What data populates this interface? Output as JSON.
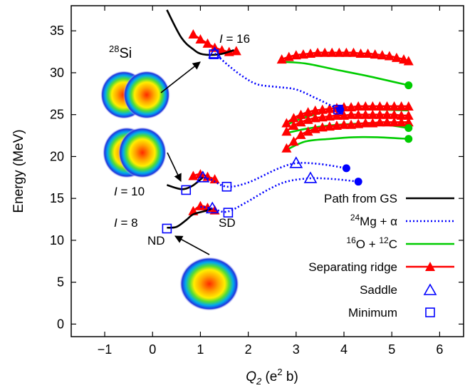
{
  "chart_data": {
    "type": "line",
    "title": "",
    "xlabel": "Q",
    "xlabel_sub": "2",
    "xlabel_unit_prefix": " (e",
    "xlabel_unit_sup": "2",
    "xlabel_unit_suffix": " b)",
    "ylabel": "Energy (MeV)",
    "xlim": [
      -1.7,
      6.5
    ],
    "ylim": [
      -1.5,
      38
    ],
    "xticks": [
      -1,
      0,
      1,
      2,
      3,
      4,
      5,
      6
    ],
    "yticks": [
      0,
      5,
      10,
      15,
      20,
      25,
      30,
      35
    ],
    "nucleus": {
      "sup": "28",
      "sym": "Si"
    },
    "annotations": {
      "I16": {
        "italic": "I",
        "text": " = 16"
      },
      "I10": {
        "italic": "I",
        "text": " = 10"
      },
      "I8": {
        "italic": "I",
        "text": " = 8"
      },
      "ND": "ND",
      "SD": "SD"
    },
    "legend": {
      "position": "bottom-right",
      "items": [
        {
          "label": "Path from GS",
          "style": "path"
        },
        {
          "sup": "24",
          "pre": "Mg + α",
          "style": "mg"
        },
        {
          "sup1": "16",
          "mid": "O + ",
          "sup2": "12",
          "post": "C",
          "style": "oc"
        },
        {
          "label": "Separating ridge",
          "style": "ridge"
        },
        {
          "label": "Saddle",
          "style": "saddle"
        },
        {
          "label": "Minimum",
          "style": "minimum"
        }
      ]
    },
    "colors": {
      "path": "#000000",
      "mg": "#0000ff",
      "oc": "#00cc00",
      "ridge": "#ff0000",
      "marker": "#0000ff"
    },
    "series": {
      "path_gs": [
        [
          [
            0.3,
            11.5
          ],
          [
            0.5,
            11.6
          ],
          [
            0.7,
            12.4
          ],
          [
            0.85,
            13.1
          ],
          [
            1.1,
            13.5
          ],
          [
            1.25,
            13.8
          ]
        ],
        [
          [
            0.3,
            16.6
          ],
          [
            0.6,
            16.1
          ],
          [
            0.8,
            16.4
          ],
          [
            0.95,
            17.0
          ],
          [
            1.05,
            17.5
          ]
        ],
        [
          [
            0.3,
            37.5
          ],
          [
            0.6,
            34.2
          ],
          [
            0.85,
            32.8
          ],
          [
            1.05,
            32.2
          ],
          [
            1.4,
            32.2
          ],
          [
            1.7,
            32.7
          ]
        ]
      ],
      "mg_alpha": [
        [
          [
            1.0,
            14.0
          ],
          [
            1.25,
            13.8
          ],
          [
            1.55,
            13.4
          ],
          [
            1.95,
            14.5
          ],
          [
            2.4,
            16.0
          ],
          [
            2.8,
            17.0
          ],
          [
            3.3,
            17.4
          ],
          [
            3.8,
            17.3
          ],
          [
            4.3,
            17.0
          ]
        ],
        [
          [
            1.0,
            17.5
          ],
          [
            1.2,
            17.3
          ],
          [
            1.55,
            16.4
          ],
          [
            2.0,
            16.9
          ],
          [
            2.6,
            18.5
          ],
          [
            3.0,
            19.2
          ],
          [
            3.5,
            19.1
          ],
          [
            4.05,
            18.6
          ]
        ],
        [
          [
            1.3,
            32.3
          ],
          [
            1.6,
            30.8
          ],
          [
            1.9,
            29.5
          ],
          [
            2.2,
            28.6
          ],
          [
            2.6,
            28.3
          ],
          [
            3.0,
            28.0
          ],
          [
            3.4,
            27.0
          ],
          [
            3.9,
            25.6
          ]
        ]
      ],
      "o_c": [
        [
          [
            2.8,
            20.8
          ],
          [
            3.2,
            21.8
          ],
          [
            3.7,
            22.1
          ],
          [
            4.2,
            22.3
          ],
          [
            4.7,
            22.3
          ],
          [
            5.35,
            22.1
          ]
        ],
        [
          [
            2.8,
            22.8
          ],
          [
            3.2,
            23.3
          ],
          [
            3.7,
            23.7
          ],
          [
            4.2,
            23.9
          ],
          [
            4.7,
            23.9
          ],
          [
            5.35,
            23.4
          ]
        ],
        [
          [
            2.8,
            23.8
          ],
          [
            3.2,
            24.7
          ],
          [
            3.7,
            25.4
          ],
          [
            4.2,
            25.6
          ],
          [
            4.7,
            25.6
          ],
          [
            5.35,
            25.5
          ]
        ],
        [
          [
            2.7,
            31.3
          ],
          [
            3.2,
            31.1
          ],
          [
            3.8,
            30.4
          ],
          [
            4.5,
            29.6
          ],
          [
            5.35,
            28.5
          ]
        ]
      ],
      "ridge": [
        {
          "x": [
            0.85,
            1.0,
            1.15,
            1.3
          ],
          "y": [
            17.7,
            17.9,
            17.6,
            17.3
          ]
        },
        {
          "x": [
            0.85,
            1.0,
            1.15,
            1.3
          ],
          "y": [
            13.5,
            14.1,
            13.9,
            13.6
          ]
        },
        {
          "x": [
            0.85,
            1.0,
            1.15,
            1.3,
            1.45,
            1.6,
            1.75
          ],
          "y": [
            34.6,
            34.0,
            33.5,
            33.0,
            32.7,
            32.5,
            32.6
          ]
        },
        {
          "x": [
            2.8,
            2.95,
            3.1,
            3.25,
            3.4,
            3.55,
            3.7,
            3.85,
            4.0,
            4.15,
            4.3,
            4.45,
            4.6,
            4.75,
            4.9,
            5.05,
            5.2,
            5.35
          ],
          "y": [
            21.0,
            21.8,
            22.6,
            23.0,
            23.3,
            23.5,
            23.6,
            23.7,
            23.8,
            23.8,
            23.9,
            24.0,
            24.0,
            24.1,
            24.1,
            24.1,
            24.1,
            24.1
          ]
        },
        {
          "x": [
            2.8,
            2.95,
            3.1,
            3.25,
            3.4,
            3.55,
            3.7,
            3.85,
            4.0,
            4.15,
            4.3,
            4.45,
            4.6,
            4.75,
            4.9,
            5.05,
            5.2,
            5.35
          ],
          "y": [
            23.0,
            23.7,
            24.1,
            24.4,
            24.6,
            24.7,
            24.8,
            24.9,
            24.9,
            25.0,
            25.0,
            25.0,
            25.0,
            25.0,
            25.0,
            25.0,
            24.9,
            24.9
          ]
        },
        {
          "x": [
            2.8,
            2.95,
            3.1,
            3.25,
            3.4,
            3.55,
            3.7,
            3.85,
            4.0,
            4.15,
            4.3,
            4.45,
            4.6,
            4.75,
            4.9,
            5.05,
            5.2,
            5.35
          ],
          "y": [
            24.0,
            24.6,
            25.0,
            25.3,
            25.5,
            25.6,
            25.7,
            25.8,
            25.9,
            25.9,
            26.0,
            26.0,
            26.0,
            26.0,
            26.0,
            26.0,
            26.0,
            26.0
          ]
        },
        {
          "x": [
            2.7,
            2.85,
            3.0,
            3.15,
            3.3,
            3.45,
            3.6,
            3.75,
            3.9,
            4.05,
            4.2,
            4.35,
            4.5,
            4.65,
            4.8,
            4.95,
            5.1,
            5.25,
            5.35
          ],
          "y": [
            31.6,
            31.9,
            32.1,
            32.2,
            32.3,
            32.4,
            32.4,
            32.4,
            32.4,
            32.4,
            32.4,
            32.3,
            32.3,
            32.2,
            32.1,
            32.0,
            31.8,
            31.6,
            31.4
          ]
        }
      ],
      "endpoints": [
        {
          "x": 4.3,
          "y": 17.0,
          "color": "#0000ff"
        },
        {
          "x": 4.05,
          "y": 18.6,
          "color": "#0000ff"
        },
        {
          "x": 3.92,
          "y": 25.6,
          "color": "#0000ff"
        },
        {
          "x": 5.35,
          "y": 22.1,
          "color": "#00cc00"
        },
        {
          "x": 5.35,
          "y": 23.4,
          "color": "#00cc00"
        },
        {
          "x": 5.35,
          "y": 28.5,
          "color": "#00cc00"
        }
      ],
      "saddles": [
        [
          1.25,
          13.8
        ],
        [
          1.05,
          17.5
        ],
        [
          3.0,
          19.2
        ],
        [
          3.3,
          17.4
        ],
        [
          1.3,
          32.3
        ]
      ],
      "minima": [
        [
          0.3,
          11.4
        ],
        [
          0.7,
          16.0
        ],
        [
          1.55,
          16.4
        ],
        [
          1.58,
          13.3
        ],
        [
          1.28,
          32.2
        ],
        [
          3.88,
          25.6
        ]
      ]
    }
  }
}
